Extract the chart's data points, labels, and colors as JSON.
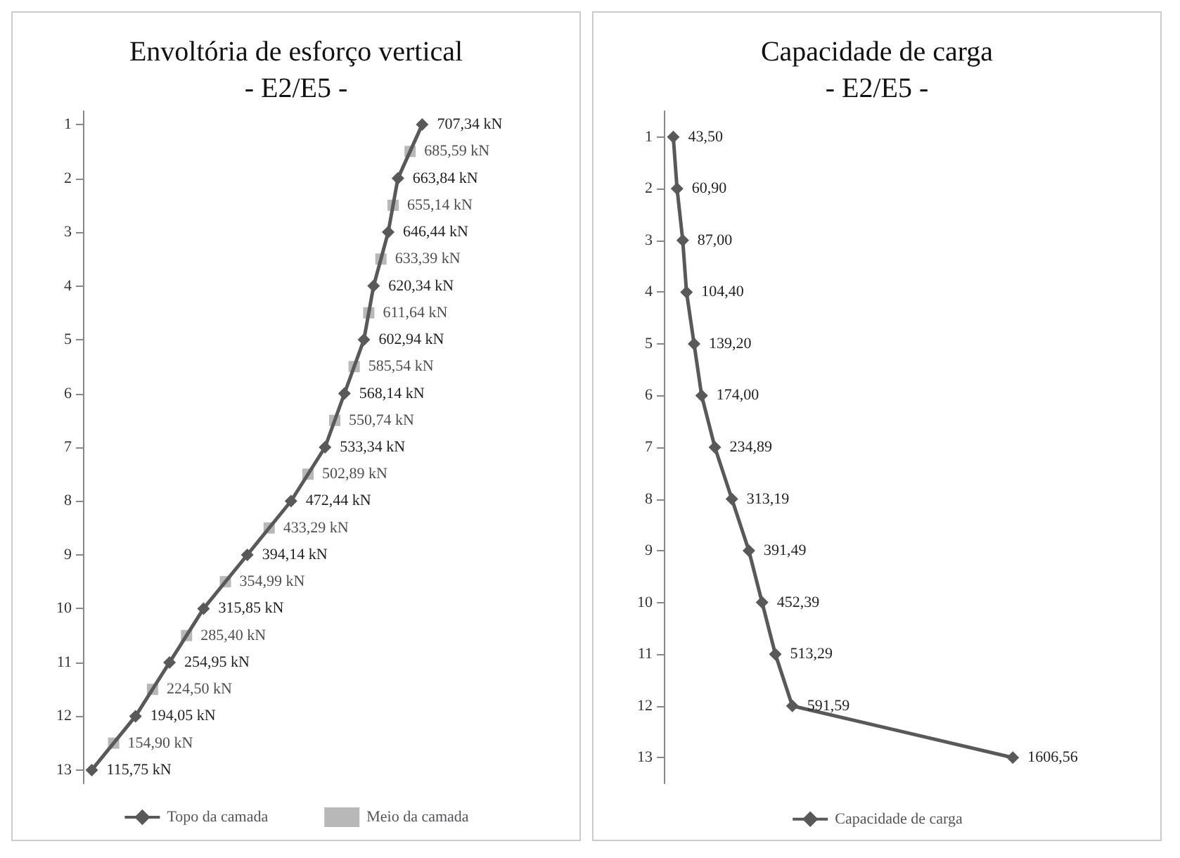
{
  "chart_data": [
    {
      "type": "line",
      "orientation": "horizontal",
      "title": "Envoltória de esforço vertical\n- E2/E5 -",
      "categories": [
        "1",
        null,
        "2",
        null,
        "3",
        null,
        "4",
        null,
        "5",
        null,
        "6",
        null,
        "7",
        null,
        "8",
        null,
        "9",
        null,
        "10",
        null,
        "11",
        null,
        "12",
        null,
        "13"
      ],
      "tick_labels": "y",
      "grid": false,
      "legend": "bottom",
      "series": [
        {
          "name": "Topo da camada",
          "type": "line",
          "color": "#595959",
          "marker": "diamond",
          "line_style": "solid",
          "values": [
            707.34,
            null,
            663.84,
            null,
            646.44,
            null,
            620.34,
            null,
            602.94,
            null,
            568.14,
            null,
            533.34,
            null,
            472.44,
            null,
            394.14,
            null,
            315.85,
            null,
            254.95,
            null,
            194.05,
            null,
            115.75
          ],
          "value_labels": [
            "707,34 kN",
            null,
            "663,84 kN",
            null,
            "646,44 kN",
            null,
            "620,34 kN",
            null,
            "602,94 kN",
            null,
            "568,14 kN",
            null,
            "533,34 kN",
            null,
            "472,44 kN",
            null,
            "394,14 kN",
            null,
            "315,85 kN",
            null,
            "254,95 kN",
            null,
            "194,05 kN",
            null,
            "115,75 kN"
          ]
        },
        {
          "name": "Meio da camada",
          "type": "scatter",
          "color": "#a6a6a6",
          "marker": "square",
          "values": [
            null,
            685.59,
            null,
            655.14,
            null,
            633.39,
            null,
            611.64,
            null,
            585.54,
            null,
            550.74,
            null,
            502.89,
            null,
            433.29,
            null,
            354.99,
            null,
            285.4,
            null,
            224.5,
            null,
            154.9,
            null
          ],
          "value_labels": [
            null,
            "685,59 kN",
            null,
            "655,14 kN",
            null,
            "633,39 kN",
            null,
            "611,64 kN",
            null,
            "585,54 kN",
            null,
            "550,74 kN",
            null,
            "502,89 kN",
            null,
            "433,29 kN",
            null,
            "354,99 kN",
            null,
            "285,40 kN",
            null,
            "224,50 kN",
            null,
            "154,90 kN",
            null
          ]
        }
      ]
    },
    {
      "type": "line",
      "orientation": "horizontal",
      "title": "Capacidade de carga\n- E2/E5 -",
      "categories": [
        "1",
        "2",
        "3",
        "4",
        "5",
        "6",
        "7",
        "8",
        "9",
        "10",
        "11",
        "12",
        "13"
      ],
      "tick_labels": "y",
      "grid": false,
      "legend": "bottom",
      "series": [
        {
          "name": "Capacidade de carga",
          "type": "line",
          "color": "#595959",
          "marker": "diamond",
          "line_style": "solid",
          "values": [
            43.5,
            60.9,
            87.0,
            104.4,
            139.2,
            174.0,
            234.89,
            313.19,
            391.49,
            452.39,
            513.29,
            591.59,
            1606.56
          ],
          "value_labels": [
            "43,50",
            "60,90",
            "87,00",
            "104,40",
            "139,20",
            "174,00",
            "234,89",
            "313,19",
            "391,49",
            "452,39",
            "513,29",
            "591,59",
            "1606,56"
          ]
        }
      ]
    }
  ]
}
